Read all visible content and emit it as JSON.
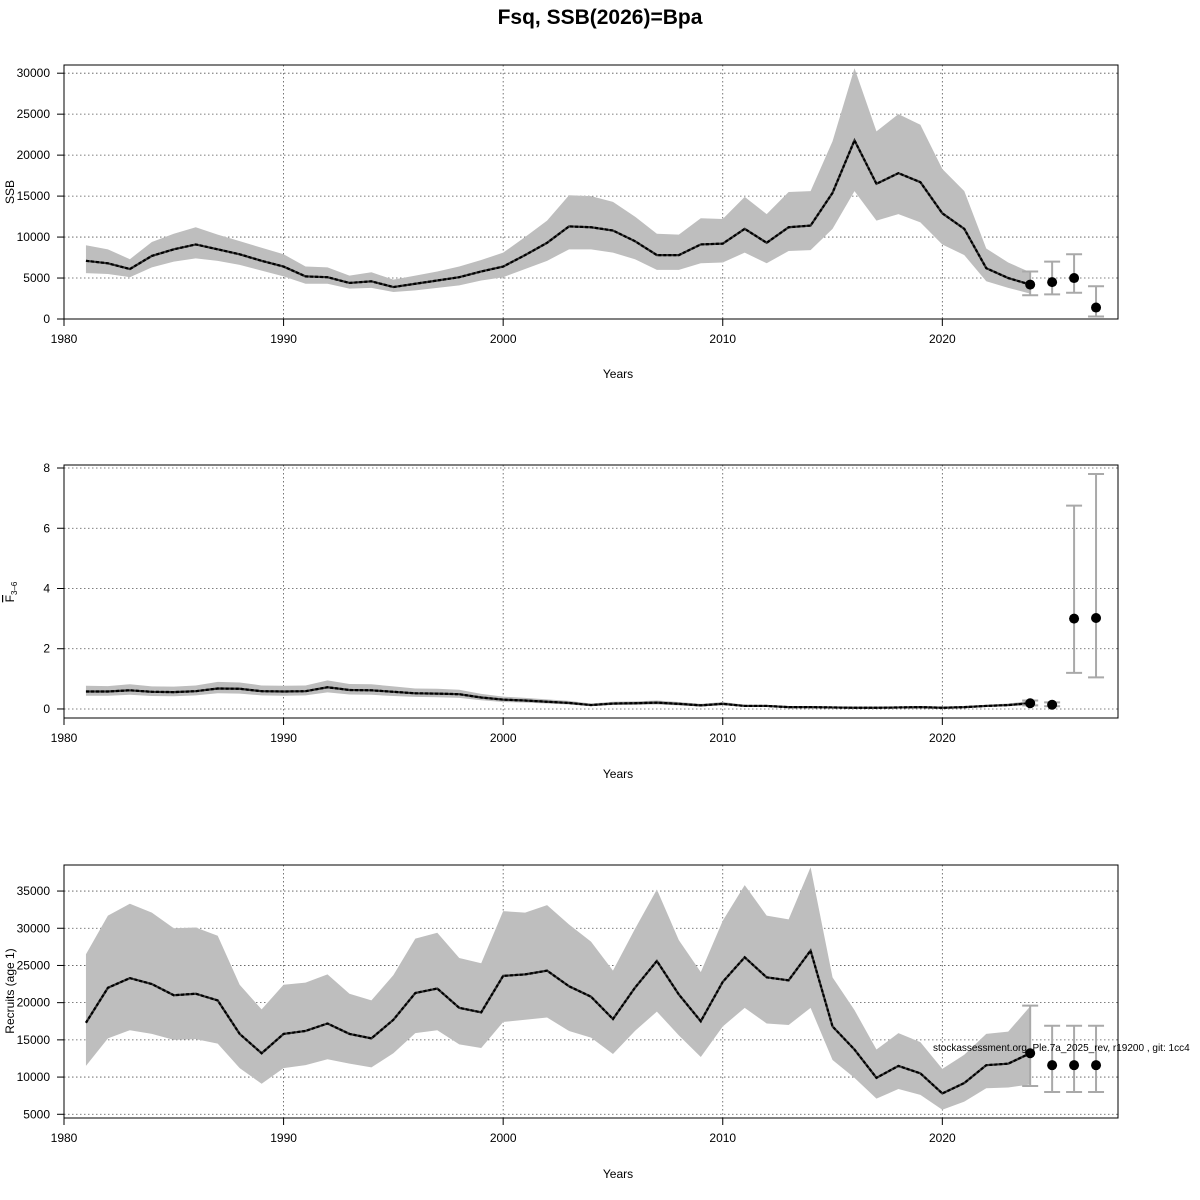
{
  "title": "Fsq, SSB(2026)=Bpa",
  "footnote": "stockassessment.org, Ple.7a_2025_rev, r19200 , git: 1cc4",
  "colors": {
    "band": "#bebebe",
    "line": "#000000",
    "grid": "#555555",
    "errorbar": "#a9a9a9"
  },
  "chart_data": [
    {
      "type": "area",
      "name": "ssb",
      "xlabel": "Years",
      "ylabel": "SSB",
      "xlim": [
        1980,
        2028
      ],
      "ylim": [
        0,
        31000
      ],
      "xticks": [
        1980,
        1990,
        2000,
        2010,
        2020
      ],
      "yticks": [
        0,
        5000,
        10000,
        15000,
        20000,
        25000,
        30000
      ],
      "grid": true,
      "x": [
        1981,
        1982,
        1983,
        1984,
        1985,
        1986,
        1987,
        1988,
        1989,
        1990,
        1991,
        1992,
        1993,
        1994,
        1995,
        1996,
        1997,
        1998,
        1999,
        2000,
        2001,
        2002,
        2003,
        2004,
        2005,
        2006,
        2007,
        2008,
        2009,
        2010,
        2011,
        2012,
        2013,
        2014,
        2015,
        2016,
        2017,
        2018,
        2019,
        2020,
        2021,
        2022,
        2023,
        2024
      ],
      "estimate": [
        7100,
        6800,
        6100,
        7700,
        8500,
        9100,
        8500,
        7900,
        7100,
        6400,
        5200,
        5100,
        4400,
        4600,
        3900,
        4300,
        4700,
        5100,
        5800,
        6400,
        7800,
        9300,
        11300,
        11200,
        10800,
        9500,
        7800,
        7800,
        9100,
        9200,
        11000,
        9300,
        11200,
        11400,
        15400,
        21800,
        16500,
        17800,
        16700,
        12900,
        11000,
        6200,
        5000,
        4200
      ],
      "lower": [
        5600,
        5500,
        5100,
        6300,
        7000,
        7400,
        7100,
        6600,
        5900,
        5200,
        4300,
        4300,
        3700,
        3800,
        3300,
        3500,
        3800,
        4100,
        4700,
        5100,
        6100,
        7100,
        8500,
        8500,
        8100,
        7300,
        6000,
        6000,
        6800,
        6900,
        8100,
        6800,
        8300,
        8400,
        11000,
        15600,
        12000,
        12800,
        11800,
        9100,
        7800,
        4600,
        3800,
        3100
      ],
      "upper": [
        9000,
        8500,
        7300,
        9400,
        10400,
        11200,
        10300,
        9500,
        8700,
        7900,
        6400,
        6300,
        5300,
        5700,
        4800,
        5300,
        5800,
        6400,
        7200,
        8100,
        10000,
        12000,
        15100,
        15000,
        14300,
        12500,
        10400,
        10300,
        12300,
        12200,
        14900,
        12800,
        15500,
        15600,
        21700,
        30600,
        22900,
        25000,
        23700,
        18300,
        15600,
        8600,
        6900,
        5700
      ],
      "forecast": [
        {
          "year": 2024,
          "value": 4200,
          "lower": 2900,
          "upper": 5800
        },
        {
          "year": 2025,
          "value": 4500,
          "lower": 3000,
          "upper": 7000
        },
        {
          "year": 2026,
          "value": 5000,
          "lower": 3200,
          "upper": 7900
        },
        {
          "year": 2027,
          "value": 1400,
          "lower": 300,
          "upper": 4000
        }
      ]
    },
    {
      "type": "area",
      "name": "fbar",
      "xlabel": "Years",
      "ylabel": "F̄3-6",
      "ylabel_main": "F",
      "ylabel_sub": "3–6",
      "xlim": [
        1980,
        2028
      ],
      "ylim": [
        -0.3,
        8.1
      ],
      "xticks": [
        1980,
        1990,
        2000,
        2010,
        2020
      ],
      "yticks": [
        0,
        2,
        4,
        6,
        8
      ],
      "grid": true,
      "x": [
        1981,
        1982,
        1983,
        1984,
        1985,
        1986,
        1987,
        1988,
        1989,
        1990,
        1991,
        1992,
        1993,
        1994,
        1995,
        1996,
        1997,
        1998,
        1999,
        2000,
        2001,
        2002,
        2003,
        2004,
        2005,
        2006,
        2007,
        2008,
        2009,
        2010,
        2011,
        2012,
        2013,
        2014,
        2015,
        2016,
        2017,
        2018,
        2019,
        2020,
        2021,
        2022,
        2023,
        2024
      ],
      "estimate": [
        0.58,
        0.58,
        0.62,
        0.57,
        0.56,
        0.59,
        0.68,
        0.67,
        0.59,
        0.58,
        0.59,
        0.72,
        0.63,
        0.62,
        0.57,
        0.52,
        0.51,
        0.49,
        0.38,
        0.31,
        0.28,
        0.24,
        0.2,
        0.13,
        0.18,
        0.19,
        0.21,
        0.17,
        0.12,
        0.17,
        0.1,
        0.1,
        0.06,
        0.06,
        0.05,
        0.04,
        0.04,
        0.05,
        0.06,
        0.04,
        0.06,
        0.1,
        0.13,
        0.19
      ],
      "lower": [
        0.44,
        0.44,
        0.47,
        0.43,
        0.42,
        0.45,
        0.52,
        0.51,
        0.45,
        0.44,
        0.45,
        0.55,
        0.48,
        0.47,
        0.43,
        0.4,
        0.39,
        0.37,
        0.29,
        0.23,
        0.21,
        0.18,
        0.15,
        0.09,
        0.13,
        0.14,
        0.15,
        0.12,
        0.08,
        0.12,
        0.07,
        0.07,
        0.04,
        0.04,
        0.03,
        0.02,
        0.02,
        0.03,
        0.04,
        0.02,
        0.04,
        0.07,
        0.09,
        0.13
      ],
      "upper": [
        0.77,
        0.76,
        0.82,
        0.75,
        0.74,
        0.78,
        0.9,
        0.88,
        0.78,
        0.77,
        0.78,
        0.95,
        0.83,
        0.82,
        0.75,
        0.68,
        0.67,
        0.64,
        0.5,
        0.41,
        0.37,
        0.32,
        0.27,
        0.18,
        0.24,
        0.25,
        0.28,
        0.23,
        0.17,
        0.23,
        0.14,
        0.14,
        0.09,
        0.09,
        0.08,
        0.07,
        0.07,
        0.08,
        0.09,
        0.07,
        0.09,
        0.14,
        0.18,
        0.27
      ],
      "forecast": [
        {
          "year": 2024,
          "value": 0.19,
          "lower": 0.12,
          "upper": 0.28
        },
        {
          "year": 2025,
          "value": 0.14,
          "lower": 0.09,
          "upper": 0.22
        },
        {
          "year": 2026,
          "value": 3.0,
          "lower": 1.2,
          "upper": 6.75
        },
        {
          "year": 2027,
          "value": 3.02,
          "lower": 1.05,
          "upper": 7.8
        }
      ]
    },
    {
      "type": "area",
      "name": "recruits",
      "xlabel": "Years",
      "ylabel": "Recruits (age 1)",
      "xlim": [
        1980,
        2028
      ],
      "ylim": [
        4500,
        38500
      ],
      "xticks": [
        1980,
        1990,
        2000,
        2010,
        2020
      ],
      "yticks": [
        5000,
        10000,
        15000,
        20000,
        25000,
        30000,
        35000
      ],
      "grid": true,
      "x": [
        1981,
        1982,
        1983,
        1984,
        1985,
        1986,
        1987,
        1988,
        1989,
        1990,
        1991,
        1992,
        1993,
        1994,
        1995,
        1996,
        1997,
        1998,
        1999,
        2000,
        2001,
        2002,
        2003,
        2004,
        2005,
        2006,
        2007,
        2008,
        2009,
        2010,
        2011,
        2012,
        2013,
        2014,
        2015,
        2016,
        2017,
        2018,
        2019,
        2020,
        2021,
        2022,
        2023,
        2024
      ],
      "estimate": [
        17300,
        22000,
        23300,
        22500,
        21000,
        21200,
        20300,
        15800,
        13200,
        15800,
        16200,
        17200,
        15800,
        15200,
        17700,
        21300,
        21900,
        19300,
        18700,
        23600,
        23800,
        24300,
        22200,
        20800,
        17800,
        22000,
        25600,
        21100,
        17500,
        22800,
        26100,
        23400,
        23000,
        27000,
        16800,
        13700,
        9900,
        11500,
        10500,
        7800,
        9200,
        11600,
        11800,
        13200
      ],
      "lower": [
        11500,
        15200,
        16300,
        15800,
        15000,
        15100,
        14500,
        11200,
        9100,
        11200,
        11600,
        12400,
        11800,
        11300,
        13200,
        15900,
        16300,
        14400,
        13900,
        17400,
        17700,
        18000,
        16200,
        15300,
        13100,
        16200,
        18800,
        15600,
        12700,
        16800,
        19300,
        17200,
        17000,
        19300,
        12300,
        9900,
        7100,
        8400,
        7600,
        5600,
        6700,
        8500,
        8600,
        9000
      ],
      "upper": [
        26500,
        31700,
        33300,
        32100,
        30000,
        30100,
        29000,
        22400,
        19100,
        22400,
        22700,
        23800,
        21200,
        20300,
        23700,
        28600,
        29400,
        26000,
        25300,
        32300,
        32100,
        33100,
        30500,
        28200,
        24300,
        29900,
        35200,
        28400,
        24100,
        31000,
        35800,
        31700,
        31200,
        38200,
        23400,
        19000,
        13700,
        15900,
        14700,
        11100,
        13000,
        15800,
        16100,
        19500
      ],
      "forecast": [
        {
          "year": 2024,
          "value": 13200,
          "lower": 8800,
          "upper": 19600
        },
        {
          "year": 2025,
          "value": 11600,
          "lower": 8000,
          "upper": 16900
        },
        {
          "year": 2026,
          "value": 11600,
          "lower": 8000,
          "upper": 16900
        },
        {
          "year": 2027,
          "value": 11600,
          "lower": 8000,
          "upper": 16900
        }
      ]
    }
  ]
}
